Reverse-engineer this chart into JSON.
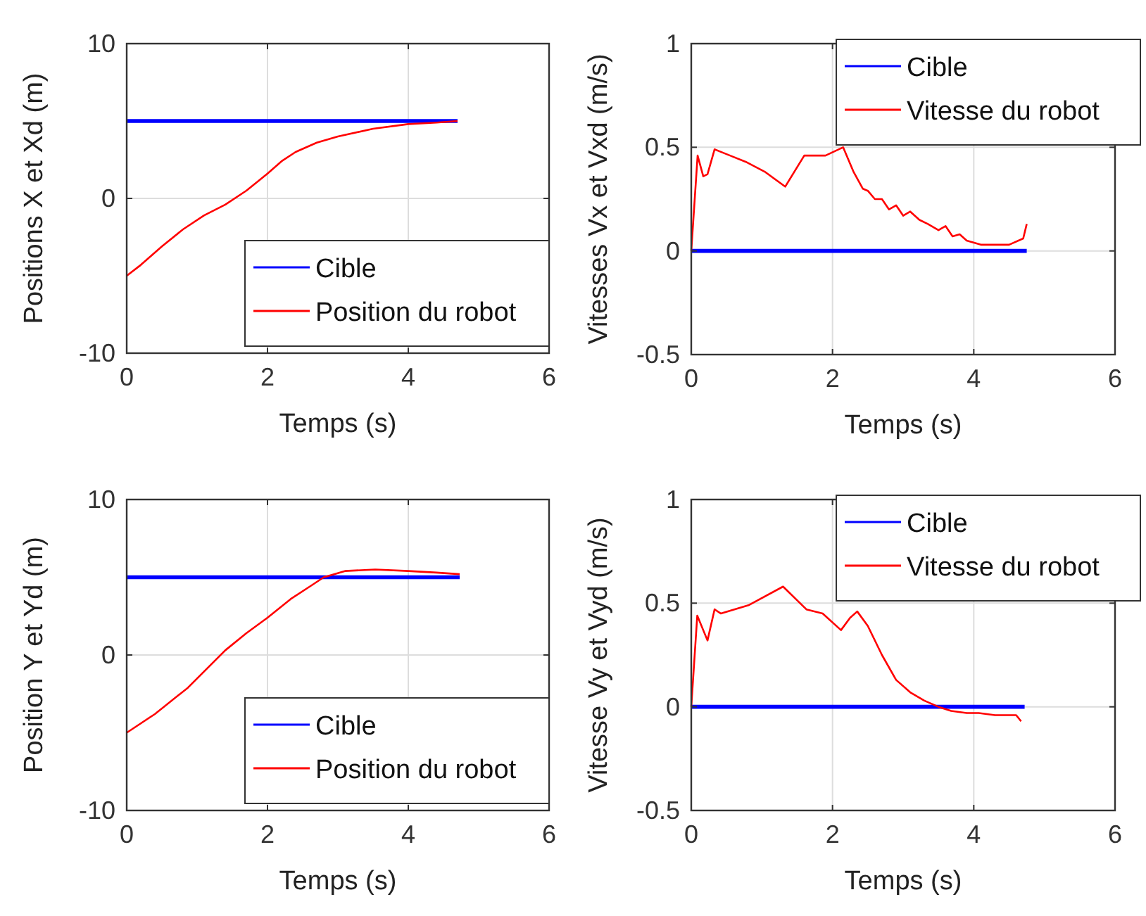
{
  "chart_data": [
    {
      "type": "line",
      "xlabel": "Temps (s)",
      "ylabel": "Positions X et Xd (m)",
      "xlim": [
        0,
        6
      ],
      "xticks": [
        0,
        2,
        4,
        6
      ],
      "ylim": [
        -10,
        10
      ],
      "yticks": [
        -10,
        0,
        10
      ],
      "grid": true,
      "legend": "bottom right",
      "series": [
        {
          "name": "Cible",
          "color": "#0000ff",
          "x": [
            0,
            4.7
          ],
          "values": [
            5,
            5
          ]
        },
        {
          "name": "Position du robot",
          "color": "#ff0000",
          "x": [
            0,
            0.2,
            0.5,
            0.8,
            1.1,
            1.4,
            1.7,
            2.0,
            2.2,
            2.4,
            2.7,
            3.0,
            3.5,
            4.0,
            4.4,
            4.7
          ],
          "values": [
            -5,
            -4.3,
            -3.1,
            -2,
            -1.1,
            -0.4,
            0.5,
            1.6,
            2.4,
            3.0,
            3.6,
            4.0,
            4.5,
            4.8,
            4.9,
            5
          ]
        }
      ]
    },
    {
      "type": "line",
      "xlabel": "Temps (s)",
      "ylabel": "Vitesses Vx et Vxd (m/s)",
      "xlim": [
        0,
        6
      ],
      "xticks": [
        0,
        2,
        4,
        6
      ],
      "ylim": [
        -0.5,
        1
      ],
      "yticks": [
        -0.5,
        0,
        0.5,
        1
      ],
      "grid": true,
      "legend": "top right",
      "series": [
        {
          "name": "Cible",
          "color": "#0000ff",
          "x": [
            0,
            4.75
          ],
          "values": [
            0,
            0
          ]
        },
        {
          "name": "Vitesse du robot",
          "color": "#ff0000",
          "x": [
            0,
            0.09,
            0.17,
            0.23,
            0.33,
            0.55,
            0.77,
            1.05,
            1.33,
            1.6,
            1.9,
            2.15,
            2.3,
            2.43,
            2.5,
            2.6,
            2.7,
            2.8,
            2.9,
            3.0,
            3.1,
            3.23,
            3.35,
            3.5,
            3.6,
            3.7,
            3.8,
            3.9,
            4.1,
            4.3,
            4.5,
            4.7,
            4.75
          ],
          "values": [
            0,
            0.46,
            0.36,
            0.37,
            0.49,
            0.46,
            0.43,
            0.38,
            0.31,
            0.46,
            0.46,
            0.5,
            0.38,
            0.3,
            0.29,
            0.25,
            0.25,
            0.2,
            0.22,
            0.17,
            0.19,
            0.15,
            0.13,
            0.1,
            0.12,
            0.07,
            0.08,
            0.05,
            0.03,
            0.03,
            0.03,
            0.06,
            0.13
          ]
        }
      ]
    },
    {
      "type": "line",
      "xlabel": "Temps (s)",
      "ylabel": "Position Y et Yd (m)",
      "xlim": [
        0,
        6
      ],
      "xticks": [
        0,
        2,
        4,
        6
      ],
      "ylim": [
        -10,
        10
      ],
      "yticks": [
        -10,
        0,
        10
      ],
      "grid": true,
      "legend": "bottom right",
      "series": [
        {
          "name": "Cible",
          "color": "#0000ff",
          "x": [
            0,
            4.73
          ],
          "values": [
            5,
            5
          ]
        },
        {
          "name": "Position du robot",
          "color": "#ff0000",
          "x": [
            0,
            0.4,
            0.87,
            1.4,
            1.7,
            2.0,
            2.33,
            2.6,
            2.8,
            3.1,
            3.53,
            4.0,
            4.4,
            4.73
          ],
          "values": [
            -5,
            -3.8,
            -2.1,
            0.3,
            1.4,
            2.4,
            3.6,
            4.4,
            5.0,
            5.4,
            5.5,
            5.4,
            5.3,
            5.2
          ]
        }
      ]
    },
    {
      "type": "line",
      "xlabel": "Temps (s)",
      "ylabel": "Vitesse Vy et Vyd (m/s)",
      "xlim": [
        0,
        6
      ],
      "xticks": [
        0,
        2,
        4,
        6
      ],
      "ylim": [
        -0.5,
        1
      ],
      "yticks": [
        -0.5,
        0,
        0.5,
        1
      ],
      "grid": true,
      "legend": "top right",
      "series": [
        {
          "name": "Cible",
          "color": "#0000ff",
          "x": [
            0,
            4.72
          ],
          "values": [
            0,
            0
          ]
        },
        {
          "name": "Vitesse du robot",
          "color": "#ff0000",
          "x": [
            0,
            0.085,
            0.23,
            0.33,
            0.42,
            0.81,
            1.3,
            1.63,
            1.86,
            2.12,
            2.25,
            2.35,
            2.5,
            2.7,
            2.9,
            3.1,
            3.3,
            3.5,
            3.68,
            3.9,
            4.07,
            4.3,
            4.6,
            4.67
          ],
          "values": [
            0,
            0.44,
            0.32,
            0.47,
            0.45,
            0.49,
            0.58,
            0.47,
            0.45,
            0.37,
            0.43,
            0.46,
            0.39,
            0.25,
            0.13,
            0.07,
            0.03,
            0.0,
            -0.02,
            -0.03,
            -0.03,
            -0.04,
            -0.04,
            -0.07
          ]
        }
      ]
    }
  ]
}
